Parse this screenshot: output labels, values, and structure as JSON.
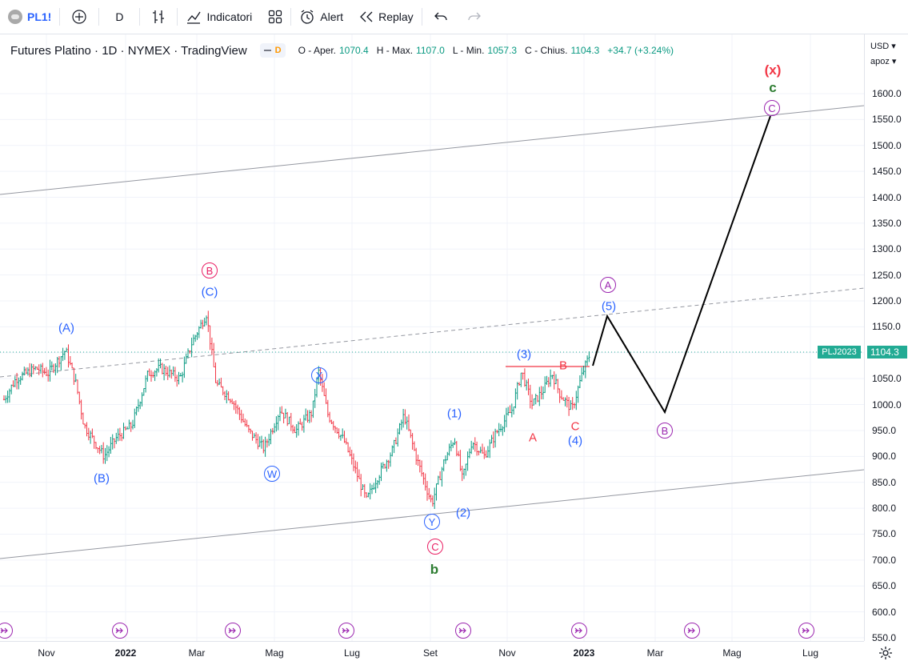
{
  "toolbar": {
    "symbol": "PL1!",
    "interval": "D",
    "indicators_label": "Indicatori",
    "alert_label": "Alert",
    "replay_label": "Replay"
  },
  "legend": {
    "title": "Futures Platino · 1D · NYMEX · TradingView",
    "flag_letter": "D",
    "open_key": "O - Aper.",
    "open": "1070.4",
    "high_key": "H - Max.",
    "high": "1107.0",
    "low_key": "L - Min.",
    "low": "1057.3",
    "close_key": "C - Chius.",
    "close": "1104.3",
    "change": "+34.7 (+3.24%)"
  },
  "price_axis": {
    "currency": "USD",
    "unit": "apoz",
    "ticks": [
      "1600.0",
      "1550.0",
      "1500.0",
      "1450.0",
      "1400.0",
      "1350.0",
      "1300.0",
      "1250.0",
      "1200.0",
      "1150.0",
      "1100.0",
      "1050.0",
      "1000.0",
      "950.0",
      "900.0",
      "850.0",
      "800.0",
      "750.0",
      "700.0",
      "650.0",
      "600.0",
      "550.0"
    ],
    "last_price": "1104.3",
    "symbol_tag": "PLJ2023"
  },
  "time_axis": {
    "ticks": [
      {
        "label": "Nov",
        "bold": false
      },
      {
        "label": "2022",
        "bold": true
      },
      {
        "label": "Mar",
        "bold": false
      },
      {
        "label": "Mag",
        "bold": false
      },
      {
        "label": "Lug",
        "bold": false
      },
      {
        "label": "Set",
        "bold": false
      },
      {
        "label": "Nov",
        "bold": false
      },
      {
        "label": "2023",
        "bold": true
      },
      {
        "label": "Mar",
        "bold": false
      },
      {
        "label": "Mag",
        "bold": false
      },
      {
        "label": "Lug",
        "bold": false
      }
    ]
  },
  "colors": {
    "up": "#089981",
    "down": "#f23645",
    "blue_wave": "#2962ff",
    "purple_wave": "#9c27b0",
    "pink_wave": "#e91e63",
    "red_wave": "#f23645",
    "green_wave": "#2e7d32",
    "projection": "#000000"
  },
  "waves": [
    {
      "text": "(A)",
      "color": "blue"
    },
    {
      "text": "(B)",
      "color": "blue"
    },
    {
      "text": "B",
      "color": "pink",
      "circled": true
    },
    {
      "text": "(C)",
      "color": "blue"
    },
    {
      "text": "W",
      "color": "blue",
      "circled": true
    },
    {
      "text": "X",
      "color": "blue",
      "circled": true
    },
    {
      "text": "Y",
      "color": "blue",
      "circled": true
    },
    {
      "text": "C",
      "color": "pink",
      "circled": true
    },
    {
      "text": "b",
      "color": "green"
    },
    {
      "text": "(1)",
      "color": "blue"
    },
    {
      "text": "(2)",
      "color": "blue"
    },
    {
      "text": "(3)",
      "color": "blue"
    },
    {
      "text": "A",
      "color": "red"
    },
    {
      "text": "B",
      "color": "red"
    },
    {
      "text": "C",
      "color": "red"
    },
    {
      "text": "(4)",
      "color": "blue"
    },
    {
      "text": "(5)",
      "color": "blue"
    },
    {
      "text": "A",
      "color": "purple",
      "circled": true
    },
    {
      "text": "B",
      "color": "purple",
      "circled": true
    },
    {
      "text": "C",
      "color": "purple",
      "circled": true
    },
    {
      "text": "c",
      "color": "green"
    },
    {
      "text": "(x)",
      "color": "red"
    }
  ]
}
